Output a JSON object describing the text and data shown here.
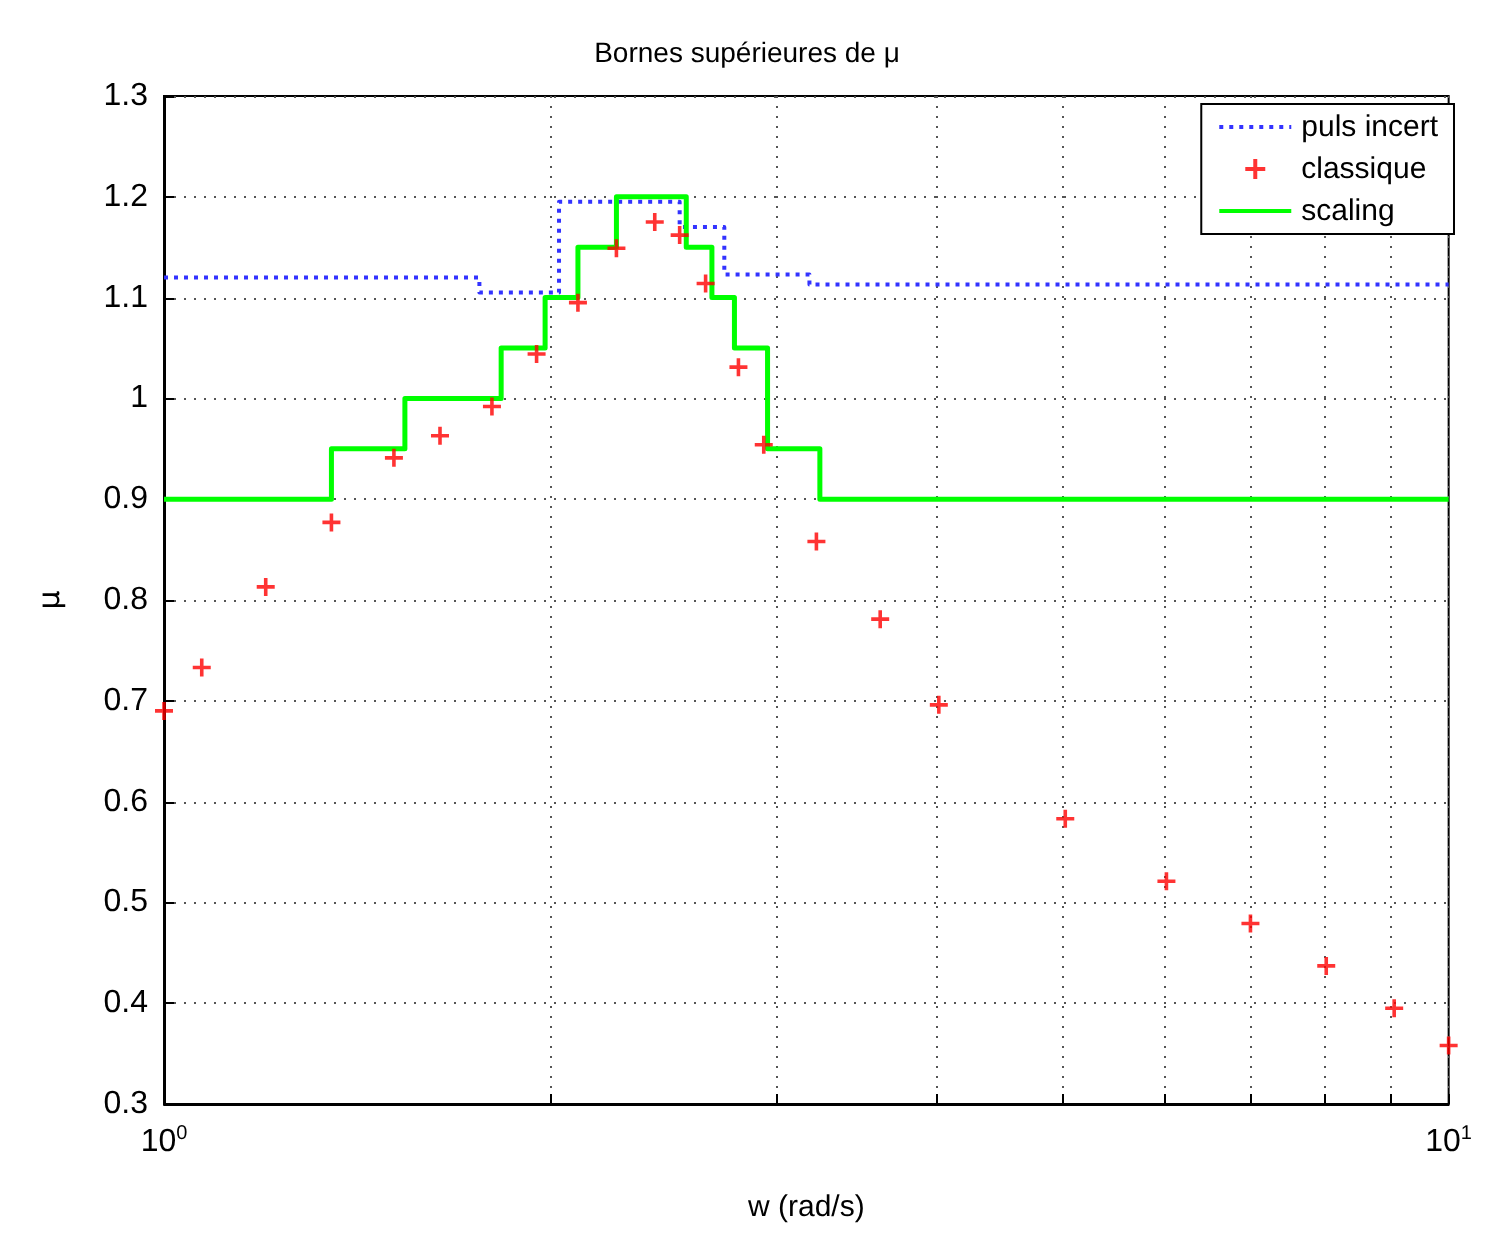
{
  "chart_data": {
    "type": "line",
    "title": "Bornes supérieures de μ",
    "xlabel": "w (rad/s)",
    "ylabel": "μ",
    "log": "x",
    "grid": true,
    "legend": "top right",
    "xlim": [
      1,
      10
    ],
    "xticks": [
      {
        "value": 1,
        "label": "10$^{0}$"
      },
      {
        "value": 2,
        "label": null
      },
      {
        "value": 3,
        "label": null
      },
      {
        "value": 4,
        "label": null
      },
      {
        "value": 5,
        "label": null
      },
      {
        "value": 6,
        "label": null
      },
      {
        "value": 7,
        "label": null
      },
      {
        "value": 8,
        "label": null
      },
      {
        "value": 9,
        "label": null
      },
      {
        "value": 10,
        "label": "10$^{1}$"
      }
    ],
    "ylim": [
      0.3,
      1.3
    ],
    "yticks": [
      0.3,
      0.4,
      0.5,
      0.6,
      0.7,
      0.8,
      0.9,
      1,
      1.1,
      1.2,
      1.3
    ],
    "series": [
      {
        "name": "puls incert",
        "type": "step",
        "color": "#3333ff",
        "line_style": "dotted",
        "marker": "none",
        "x": [
          1,
          1.76,
          2.03,
          2.52,
          2.73,
          3.18,
          10
        ],
        "values": [
          1.12,
          1.105,
          1.195,
          1.17,
          1.123,
          1.113,
          1.113
        ]
      },
      {
        "name": "classique",
        "type": "scatter",
        "color": "#ff0000",
        "marker": "cross",
        "x": [
          1,
          1.07,
          1.2,
          1.35,
          1.51,
          1.64,
          1.8,
          1.95,
          2.1,
          2.25,
          2.41,
          2.52,
          2.64,
          2.8,
          2.93,
          3.22,
          3.61,
          4.01,
          5.03,
          6.03,
          7.01,
          8.03,
          9.07,
          10
        ],
        "values": [
          0.69,
          0.733,
          0.813,
          0.877,
          0.941,
          0.963,
          0.992,
          1.044,
          1.095,
          1.149,
          1.175,
          1.162,
          1.114,
          1.031,
          0.954,
          0.858,
          0.781,
          0.696,
          0.583,
          0.521,
          0.479,
          0.437,
          0.395,
          0.358
        ]
      },
      {
        "name": "scaling",
        "type": "step",
        "color": "#00ff00",
        "line_style": "solid",
        "marker": "none",
        "x": [
          1,
          1.35,
          1.54,
          1.83,
          1.98,
          2.1,
          2.25,
          2.55,
          2.67,
          2.78,
          2.95,
          3.24,
          10
        ],
        "values": [
          0.9,
          0.95,
          1,
          1.05,
          1.1,
          1.15,
          1.2,
          1.15,
          1.1,
          1.05,
          0.95,
          0.9,
          0.9
        ]
      }
    ]
  }
}
